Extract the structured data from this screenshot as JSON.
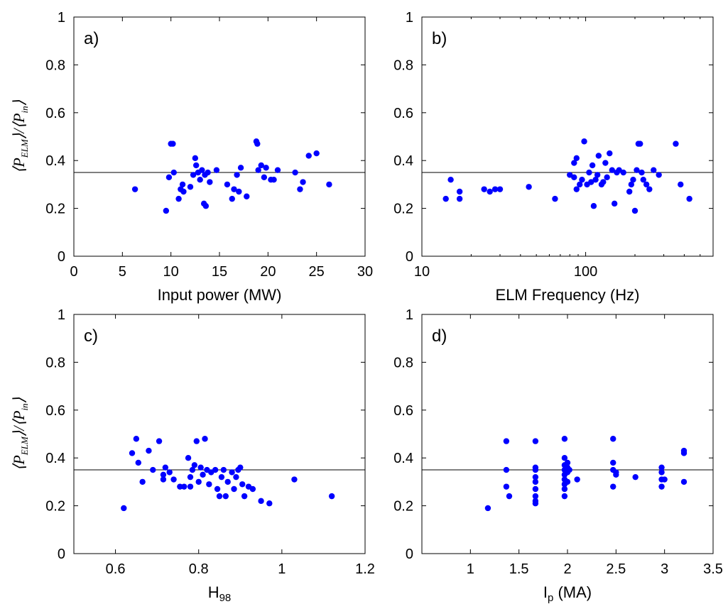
{
  "chart_data": [
    {
      "id": "a",
      "panel_label": "a)",
      "type": "scatter",
      "xlabel": "Input power (MW)",
      "xlabel_sub": "",
      "xlabel_tail": "",
      "ylabel": "⟨P_ELM⟩/⟨P_in⟩",
      "xscale": "linear",
      "xlim": [
        0,
        30
      ],
      "ylim": [
        0,
        1
      ],
      "xticks": [
        0,
        5,
        10,
        15,
        20,
        25,
        30
      ],
      "xticklabels": [
        "0",
        "5",
        "10",
        "15",
        "20",
        "25",
        "30"
      ],
      "yticks": [
        0,
        0.2,
        0.4,
        0.6,
        0.8,
        1
      ],
      "yticklabels": [
        "0",
        "0.2",
        "0.4",
        "0.6",
        "0.8",
        "1"
      ],
      "hline": 0.35,
      "marker_color": "#0000ff",
      "points": [
        [
          6.3,
          0.28
        ],
        [
          9.5,
          0.19
        ],
        [
          9.8,
          0.33
        ],
        [
          10,
          0.47
        ],
        [
          10.2,
          0.47
        ],
        [
          10.3,
          0.35
        ],
        [
          10.8,
          0.24
        ],
        [
          11,
          0.28
        ],
        [
          11.2,
          0.3
        ],
        [
          11.3,
          0.27
        ],
        [
          12,
          0.29
        ],
        [
          12.3,
          0.34
        ],
        [
          12.5,
          0.41
        ],
        [
          12.6,
          0.38
        ],
        [
          12.8,
          0.35
        ],
        [
          13,
          0.32
        ],
        [
          13.2,
          0.36
        ],
        [
          13.4,
          0.22
        ],
        [
          13.6,
          0.21
        ],
        [
          13.5,
          0.34
        ],
        [
          13.8,
          0.35
        ],
        [
          14,
          0.31
        ],
        [
          14.7,
          0.36
        ],
        [
          15.8,
          0.3
        ],
        [
          16.3,
          0.24
        ],
        [
          16.5,
          0.28
        ],
        [
          17,
          0.27
        ],
        [
          16.8,
          0.34
        ],
        [
          17.2,
          0.37
        ],
        [
          17.8,
          0.25
        ],
        [
          18.8,
          0.48
        ],
        [
          18.9,
          0.47
        ],
        [
          19,
          0.36
        ],
        [
          19.3,
          0.38
        ],
        [
          19.6,
          0.33
        ],
        [
          19.8,
          0.37
        ],
        [
          20.3,
          0.32
        ],
        [
          20.6,
          0.32
        ],
        [
          21,
          0.36
        ],
        [
          22.8,
          0.35
        ],
        [
          23.3,
          0.28
        ],
        [
          23.6,
          0.31
        ],
        [
          24.2,
          0.42
        ],
        [
          25,
          0.43
        ],
        [
          26.3,
          0.3
        ]
      ]
    },
    {
      "id": "b",
      "panel_label": "b)",
      "type": "scatter",
      "xlabel": "ELM Frequency (Hz)",
      "xlabel_sub": "",
      "xlabel_tail": "",
      "ylabel": "",
      "xscale": "log",
      "xlim": [
        10,
        600
      ],
      "ylim": [
        0,
        1
      ],
      "xticks": [
        10,
        100
      ],
      "xticklabels": [
        "10",
        "100"
      ],
      "yticks": [
        0,
        0.2,
        0.4,
        0.6,
        0.8,
        1
      ],
      "yticklabels": [
        "0",
        "0.2",
        "0.4",
        "0.6",
        "0.8",
        "1"
      ],
      "hline": 0.35,
      "marker_color": "#0000ff",
      "points": [
        [
          14,
          0.24
        ],
        [
          15,
          0.32
        ],
        [
          17,
          0.27
        ],
        [
          17,
          0.24
        ],
        [
          24,
          0.28
        ],
        [
          26,
          0.27
        ],
        [
          28,
          0.28
        ],
        [
          30,
          0.28
        ],
        [
          45,
          0.29
        ],
        [
          65,
          0.24
        ],
        [
          80,
          0.34
        ],
        [
          85,
          0.39
        ],
        [
          85,
          0.33
        ],
        [
          88,
          0.41
        ],
        [
          88,
          0.28
        ],
        [
          92,
          0.3
        ],
        [
          95,
          0.32
        ],
        [
          98,
          0.48
        ],
        [
          102,
          0.3
        ],
        [
          105,
          0.35
        ],
        [
          108,
          0.31
        ],
        [
          110,
          0.38
        ],
        [
          112,
          0.21
        ],
        [
          115,
          0.32
        ],
        [
          118,
          0.34
        ],
        [
          120,
          0.42
        ],
        [
          125,
          0.3
        ],
        [
          128,
          0.31
        ],
        [
          132,
          0.39
        ],
        [
          135,
          0.33
        ],
        [
          140,
          0.43
        ],
        [
          145,
          0.36
        ],
        [
          150,
          0.22
        ],
        [
          155,
          0.35
        ],
        [
          160,
          0.36
        ],
        [
          170,
          0.35
        ],
        [
          185,
          0.27
        ],
        [
          190,
          0.3
        ],
        [
          195,
          0.32
        ],
        [
          200,
          0.19
        ],
        [
          205,
          0.36
        ],
        [
          210,
          0.47
        ],
        [
          215,
          0.47
        ],
        [
          220,
          0.35
        ],
        [
          225,
          0.32
        ],
        [
          235,
          0.3
        ],
        [
          245,
          0.28
        ],
        [
          260,
          0.36
        ],
        [
          280,
          0.34
        ],
        [
          355,
          0.47
        ],
        [
          380,
          0.3
        ],
        [
          430,
          0.24
        ]
      ]
    },
    {
      "id": "c",
      "panel_label": "c)",
      "type": "scatter",
      "xlabel": "H",
      "xlabel_sub": "98",
      "xlabel_tail": "",
      "ylabel": "⟨P_ELM⟩/⟨P_in⟩",
      "xscale": "linear",
      "xlim": [
        0.5,
        1.2
      ],
      "ylim": [
        0,
        1
      ],
      "xticks": [
        0.6,
        0.8,
        1,
        1.2
      ],
      "xticklabels": [
        "0.6",
        "0.8",
        "1",
        "1.2"
      ],
      "yticks": [
        0,
        0.2,
        0.4,
        0.6,
        0.8,
        1
      ],
      "yticklabels": [
        "0",
        "0.2",
        "0.4",
        "0.6",
        "0.8",
        "1"
      ],
      "hline": 0.35,
      "marker_color": "#0000ff",
      "points": [
        [
          0.62,
          0.19
        ],
        [
          0.64,
          0.42
        ],
        [
          0.65,
          0.48
        ],
        [
          0.655,
          0.38
        ],
        [
          0.665,
          0.3
        ],
        [
          0.68,
          0.43
        ],
        [
          0.69,
          0.35
        ],
        [
          0.705,
          0.47
        ],
        [
          0.715,
          0.33
        ],
        [
          0.72,
          0.36
        ],
        [
          0.715,
          0.31
        ],
        [
          0.73,
          0.34
        ],
        [
          0.74,
          0.31
        ],
        [
          0.755,
          0.28
        ],
        [
          0.765,
          0.28
        ],
        [
          0.775,
          0.4
        ],
        [
          0.78,
          0.28
        ],
        [
          0.78,
          0.32
        ],
        [
          0.785,
          0.35
        ],
        [
          0.79,
          0.37
        ],
        [
          0.795,
          0.47
        ],
        [
          0.8,
          0.3
        ],
        [
          0.805,
          0.36
        ],
        [
          0.81,
          0.33
        ],
        [
          0.815,
          0.48
        ],
        [
          0.82,
          0.35
        ],
        [
          0.825,
          0.29
        ],
        [
          0.83,
          0.34
        ],
        [
          0.84,
          0.35
        ],
        [
          0.845,
          0.27
        ],
        [
          0.85,
          0.24
        ],
        [
          0.855,
          0.32
        ],
        [
          0.86,
          0.35
        ],
        [
          0.865,
          0.24
        ],
        [
          0.87,
          0.3
        ],
        [
          0.88,
          0.34
        ],
        [
          0.885,
          0.27
        ],
        [
          0.89,
          0.32
        ],
        [
          0.895,
          0.35
        ],
        [
          0.9,
          0.36
        ],
        [
          0.905,
          0.29
        ],
        [
          0.91,
          0.24
        ],
        [
          0.92,
          0.28
        ],
        [
          0.93,
          0.27
        ],
        [
          0.95,
          0.22
        ],
        [
          0.97,
          0.21
        ],
        [
          1.03,
          0.31
        ],
        [
          1.12,
          0.24
        ]
      ]
    },
    {
      "id": "d",
      "panel_label": "d)",
      "type": "scatter",
      "xlabel": "I",
      "xlabel_sub": "p",
      "xlabel_tail": " (MA)",
      "ylabel": "",
      "xscale": "linear",
      "xlim": [
        0.5,
        3.5
      ],
      "ylim": [
        0,
        1
      ],
      "xticks": [
        1,
        1.5,
        2,
        2.5,
        3,
        3.5
      ],
      "xticklabels": [
        "1",
        "1.5",
        "2",
        "2.5",
        "3",
        "3.5"
      ],
      "yticks": [
        0,
        0.2,
        0.4,
        0.6,
        0.8,
        1
      ],
      "yticklabels": [
        "0",
        "0.2",
        "0.4",
        "0.6",
        "0.8",
        "1"
      ],
      "hline": 0.35,
      "marker_color": "#0000ff",
      "points": [
        [
          1.18,
          0.19
        ],
        [
          1.37,
          0.47
        ],
        [
          1.37,
          0.35
        ],
        [
          1.37,
          0.28
        ],
        [
          1.4,
          0.24
        ],
        [
          1.67,
          0.47
        ],
        [
          1.67,
          0.36
        ],
        [
          1.67,
          0.35
        ],
        [
          1.67,
          0.32
        ],
        [
          1.67,
          0.3
        ],
        [
          1.67,
          0.27
        ],
        [
          1.67,
          0.24
        ],
        [
          1.67,
          0.22
        ],
        [
          1.67,
          0.21
        ],
        [
          1.97,
          0.48
        ],
        [
          1.97,
          0.4
        ],
        [
          1.97,
          0.37
        ],
        [
          1.97,
          0.35
        ],
        [
          1.97,
          0.33
        ],
        [
          1.97,
          0.31
        ],
        [
          1.97,
          0.29
        ],
        [
          1.97,
          0.27
        ],
        [
          1.97,
          0.24
        ],
        [
          2.0,
          0.38
        ],
        [
          2.0,
          0.34
        ],
        [
          2.0,
          0.36
        ],
        [
          2.0,
          0.3
        ],
        [
          2.02,
          0.35
        ],
        [
          2.1,
          0.31
        ],
        [
          2.47,
          0.48
        ],
        [
          2.47,
          0.38
        ],
        [
          2.47,
          0.35
        ],
        [
          2.47,
          0.28
        ],
        [
          2.5,
          0.33
        ],
        [
          2.5,
          0.34
        ],
        [
          2.7,
          0.32
        ],
        [
          2.97,
          0.36
        ],
        [
          2.97,
          0.34
        ],
        [
          2.97,
          0.31
        ],
        [
          2.97,
          0.28
        ],
        [
          3.0,
          0.31
        ],
        [
          3.2,
          0.43
        ],
        [
          3.2,
          0.42
        ],
        [
          3.2,
          0.3
        ]
      ]
    }
  ]
}
